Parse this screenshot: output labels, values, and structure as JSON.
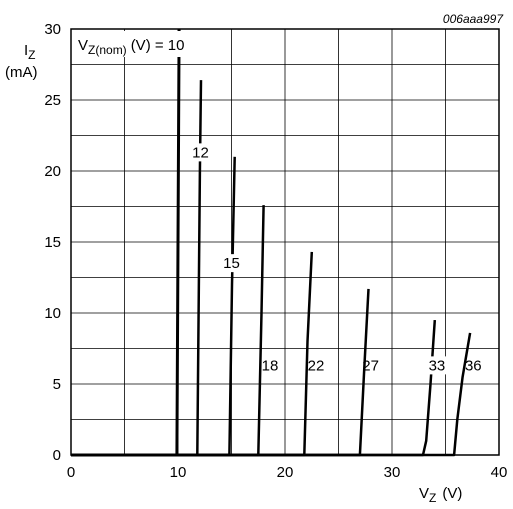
{
  "figure_ref": "006aaa997",
  "chart_data": {
    "type": "line",
    "title": "",
    "xlabel": {
      "main": "V",
      "sub": "Z",
      "unit": "(V)"
    },
    "ylabel": {
      "main": "I",
      "sub": "Z",
      "unit": "(mA)"
    },
    "xlim": [
      0,
      40
    ],
    "ylim": [
      0,
      30
    ],
    "x_ticks": [
      "0",
      "10",
      "20",
      "30",
      "40"
    ],
    "y_ticks": [
      "0",
      "5",
      "10",
      "15",
      "20",
      "25",
      "30"
    ],
    "grid": true,
    "param_label": {
      "main": "V",
      "sub": "Z(nom)",
      "unit": "(V) = 10"
    },
    "series": [
      {
        "name": "10",
        "label": "",
        "points": [
          [
            0,
            0
          ],
          [
            9.9,
            0
          ],
          [
            10.1,
            30
          ]
        ]
      },
      {
        "name": "12",
        "label": "12",
        "points": [
          [
            0,
            0
          ],
          [
            11.8,
            0
          ],
          [
            12.05,
            20
          ],
          [
            12.15,
            26.4
          ]
        ]
      },
      {
        "name": "15",
        "label": "15",
        "points": [
          [
            0,
            0
          ],
          [
            14.8,
            0
          ],
          [
            15.05,
            12
          ],
          [
            15.3,
            21
          ]
        ]
      },
      {
        "name": "18",
        "label": "18",
        "points": [
          [
            0,
            0
          ],
          [
            17.5,
            0
          ],
          [
            17.8,
            10
          ],
          [
            18.0,
            17.6
          ]
        ]
      },
      {
        "name": "22",
        "label": "22",
        "points": [
          [
            0,
            0
          ],
          [
            21.8,
            0
          ],
          [
            22.1,
            8
          ],
          [
            22.5,
            14.3
          ]
        ]
      },
      {
        "name": "27",
        "label": "27",
        "points": [
          [
            0,
            0
          ],
          [
            27.0,
            0
          ],
          [
            27.4,
            6
          ],
          [
            27.8,
            11.7
          ]
        ]
      },
      {
        "name": "33",
        "label": "33",
        "points": [
          [
            0,
            0
          ],
          [
            32.9,
            0
          ],
          [
            33.2,
            1.0
          ],
          [
            33.6,
            5.0
          ],
          [
            34.0,
            9.5
          ]
        ]
      },
      {
        "name": "36",
        "label": "36",
        "points": [
          [
            0,
            0
          ],
          [
            35.8,
            0
          ],
          [
            36.1,
            2.5
          ],
          [
            36.6,
            5.5
          ],
          [
            37.3,
            8.6
          ]
        ]
      }
    ]
  }
}
